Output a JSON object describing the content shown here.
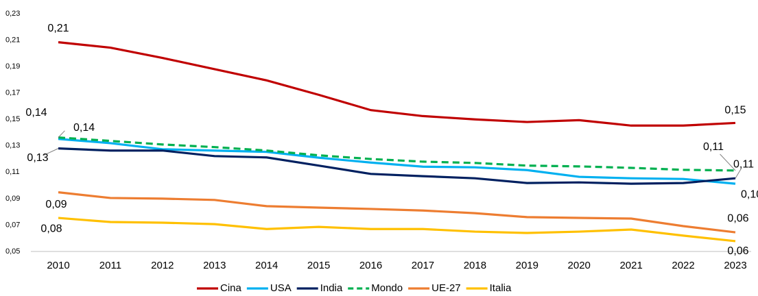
{
  "chart_data": {
    "type": "line",
    "categories": [
      "2010",
      "2011",
      "2012",
      "2013",
      "2014",
      "2015",
      "2016",
      "2017",
      "2018",
      "2019",
      "2020",
      "2021",
      "2022",
      "2023"
    ],
    "ylim": [
      0.05,
      0.23
    ],
    "yticks": [
      {
        "value": 0.05,
        "label": "0,05"
      },
      {
        "value": 0.07,
        "label": "0,07"
      },
      {
        "value": 0.09,
        "label": "0,09"
      },
      {
        "value": 0.11,
        "label": "0,11"
      },
      {
        "value": 0.13,
        "label": "0,13"
      },
      {
        "value": 0.15,
        "label": "0,15"
      },
      {
        "value": 0.17,
        "label": "0,17"
      },
      {
        "value": 0.19,
        "label": "0,19"
      },
      {
        "value": 0.21,
        "label": "0,21"
      },
      {
        "value": 0.23,
        "label": "0,23"
      }
    ],
    "grid": false,
    "legend": "bottom",
    "series": [
      {
        "name": "Cina",
        "color": "#c00000",
        "dashed": false,
        "values": [
          0.2084,
          0.2043,
          0.1965,
          0.188,
          0.1795,
          0.1686,
          0.157,
          0.1525,
          0.15,
          0.148,
          0.1494,
          0.1453,
          0.1453,
          0.1473
        ],
        "value_labels": [
          "0,21",
          null,
          null,
          null,
          null,
          null,
          null,
          null,
          null,
          null,
          null,
          null,
          null,
          "0,15"
        ]
      },
      {
        "name": "USA",
        "color": "#00b0f0",
        "dashed": false,
        "values": [
          0.1352,
          0.132,
          0.1274,
          0.1264,
          0.1254,
          0.121,
          0.1173,
          0.1142,
          0.1137,
          0.1116,
          0.1065,
          0.1054,
          0.1049,
          0.1013
        ],
        "value_labels": [
          "0,14",
          null,
          null,
          null,
          null,
          null,
          null,
          null,
          null,
          null,
          null,
          null,
          null,
          "0,10"
        ]
      },
      {
        "name": "India",
        "color": "#002060",
        "dashed": false,
        "values": [
          0.128,
          0.1264,
          0.1264,
          0.1222,
          0.1212,
          0.115,
          0.1087,
          0.107,
          0.1054,
          0.1018,
          0.1023,
          0.1013,
          0.1018,
          0.1054
        ],
        "value_labels": [
          "0,13",
          null,
          null,
          null,
          null,
          null,
          null,
          null,
          null,
          null,
          null,
          null,
          null,
          "0,11"
        ]
      },
      {
        "name": "Mondo",
        "color": "#00b050",
        "dashed": true,
        "values": [
          0.1363,
          0.1337,
          0.131,
          0.129,
          0.1264,
          0.1228,
          0.12,
          0.118,
          0.117,
          0.115,
          0.1144,
          0.1133,
          0.1118,
          0.1113
        ],
        "value_labels": [
          "0,14",
          null,
          null,
          null,
          null,
          null,
          null,
          null,
          null,
          null,
          null,
          null,
          null,
          "0,11"
        ]
      },
      {
        "name": "UE-27",
        "color": "#ed7d31",
        "dashed": false,
        "values": [
          0.0948,
          0.0905,
          0.09,
          0.089,
          0.0843,
          0.0832,
          0.0822,
          0.081,
          0.079,
          0.076,
          0.0754,
          0.0749,
          0.0692,
          0.0645
        ],
        "value_labels": [
          "0,09",
          null,
          null,
          null,
          null,
          null,
          null,
          null,
          null,
          null,
          null,
          null,
          null,
          "0,06"
        ]
      },
      {
        "name": "Italia",
        "color": "#ffc000",
        "dashed": false,
        "values": [
          0.0754,
          0.0723,
          0.0718,
          0.0707,
          0.067,
          0.0686,
          0.067,
          0.067,
          0.065,
          0.064,
          0.065,
          0.0666,
          0.062,
          0.0578
        ],
        "value_labels": [
          "0,08",
          null,
          null,
          null,
          null,
          null,
          null,
          null,
          null,
          null,
          null,
          null,
          null,
          "0,06"
        ]
      }
    ]
  }
}
